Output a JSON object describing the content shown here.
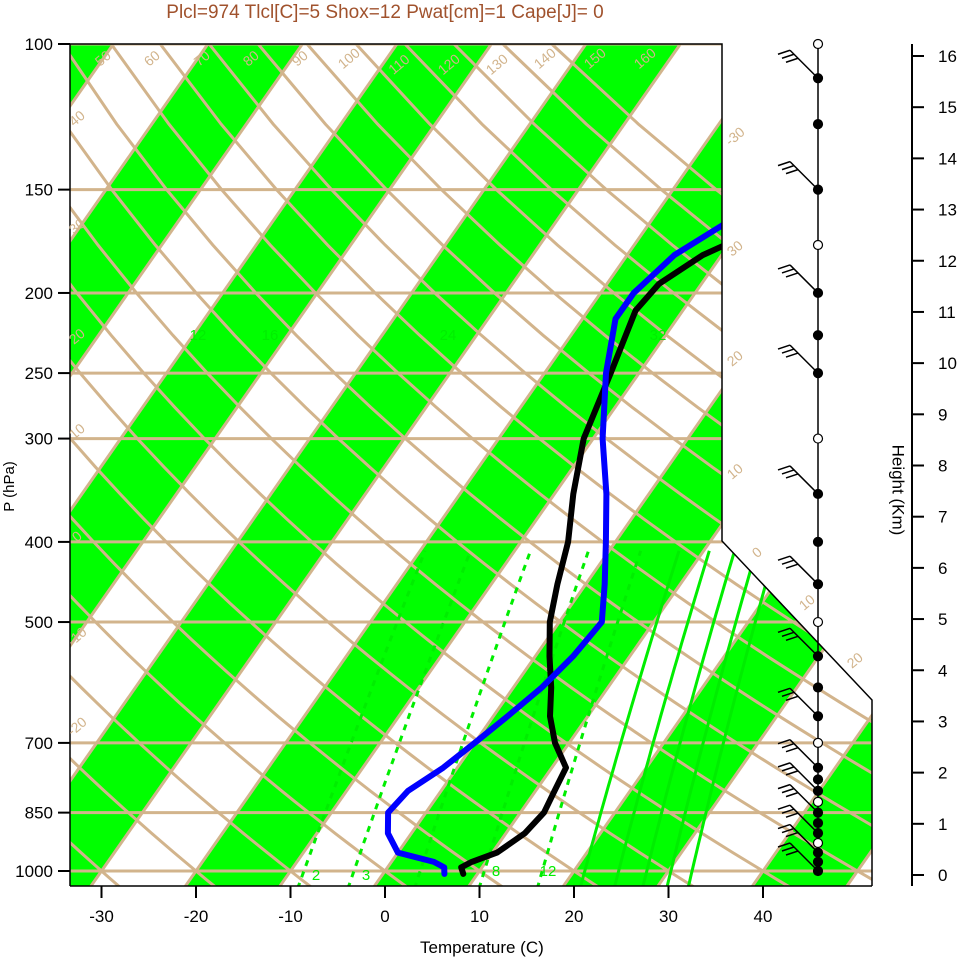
{
  "chart_data": {
    "type": "line",
    "title": "Plcl=974 Tlcl[C]=5 Shox=12 Pwat[cm]=1 Cape[J]= 0",
    "xlabel": "Temperature (C)",
    "ylabel": "P (hPa)",
    "y2label": "Height (Km)",
    "xlim": [
      -34,
      52
    ],
    "ylim": [
      1050,
      100
    ],
    "xticks": [
      -30,
      -20,
      -10,
      0,
      10,
      20,
      30,
      40
    ],
    "yticks": [
      100,
      150,
      200,
      250,
      300,
      400,
      500,
      700,
      850,
      1000
    ],
    "height_ticks": [
      0,
      1,
      2,
      3,
      4,
      5,
      6,
      7,
      8,
      9,
      10,
      11,
      12,
      13,
      14,
      15,
      16
    ],
    "y_scale": "log",
    "isotherm_labels": [
      "50",
      "60",
      "70",
      "80",
      "90",
      "100",
      "110",
      "120",
      "130",
      "140",
      "150",
      "160",
      "40",
      "30",
      "20",
      "10",
      "0",
      "-10",
      "-20",
      "-30",
      "30",
      "20",
      "10",
      "0",
      "10",
      "20",
      "30"
    ],
    "mixing_ratio_labels": [
      "12",
      "16",
      "24",
      "32",
      "2",
      "3",
      "8",
      "12"
    ],
    "colors": {
      "band": "#00ff00",
      "isotherm": "#d2b48c",
      "mixing_ratio": "#00ee00",
      "temperature": "#000000",
      "dewpoint": "#0000ff",
      "title": "#a0522d"
    },
    "series": [
      {
        "name": "",
        "color": "#000000",
        "points": [
          [
            8.5,
            1008
          ],
          [
            7.8,
            990
          ],
          [
            8.5,
            975
          ],
          [
            10.5,
            950
          ],
          [
            12,
            900
          ],
          [
            12.5,
            850
          ],
          [
            12,
            800
          ],
          [
            11.5,
            750
          ],
          [
            8.5,
            700
          ],
          [
            6,
            650
          ],
          [
            4,
            600
          ],
          [
            1.5,
            550
          ],
          [
            -1,
            500
          ],
          [
            -3,
            450
          ],
          [
            -5,
            400
          ],
          [
            -8,
            350
          ],
          [
            -11,
            300
          ],
          [
            -13,
            250
          ],
          [
            -15,
            210
          ],
          [
            -14.5,
            195
          ],
          [
            -12,
            180
          ],
          [
            -7,
            165
          ],
          [
            0,
            150
          ],
          [
            3,
            140
          ],
          [
            6,
            125
          ],
          [
            10,
            110
          ],
          [
            13,
            100
          ]
        ]
      },
      {
        "name": "",
        "color": "#0000ff",
        "points": [
          [
            6.5,
            1008
          ],
          [
            6,
            990
          ],
          [
            4.5,
            975
          ],
          [
            0,
            950
          ],
          [
            -2.5,
            900
          ],
          [
            -4,
            850
          ],
          [
            -3.5,
            800
          ],
          [
            -1.5,
            750
          ],
          [
            0,
            700
          ],
          [
            1.5,
            650
          ],
          [
            3,
            600
          ],
          [
            4,
            550
          ],
          [
            4.5,
            500
          ],
          [
            2,
            450
          ],
          [
            -1,
            400
          ],
          [
            -4.5,
            350
          ],
          [
            -9,
            300
          ],
          [
            -13.5,
            250
          ],
          [
            -16.5,
            215
          ],
          [
            -16.5,
            200
          ],
          [
            -15,
            180
          ],
          [
            -12,
            165
          ],
          [
            -11.5,
            150
          ],
          [
            -11.5,
            130
          ],
          [
            -10.5,
            120
          ],
          [
            -8,
            110
          ],
          [
            -5,
            100
          ]
        ]
      }
    ],
    "wind_levels_hpa": [
      1000,
      975,
      950,
      925,
      900,
      875,
      850,
      825,
      800,
      775,
      750,
      700,
      650,
      600,
      550,
      500,
      450,
      400,
      350,
      300,
      250,
      225,
      200,
      175,
      150,
      125,
      110,
      100
    ]
  }
}
